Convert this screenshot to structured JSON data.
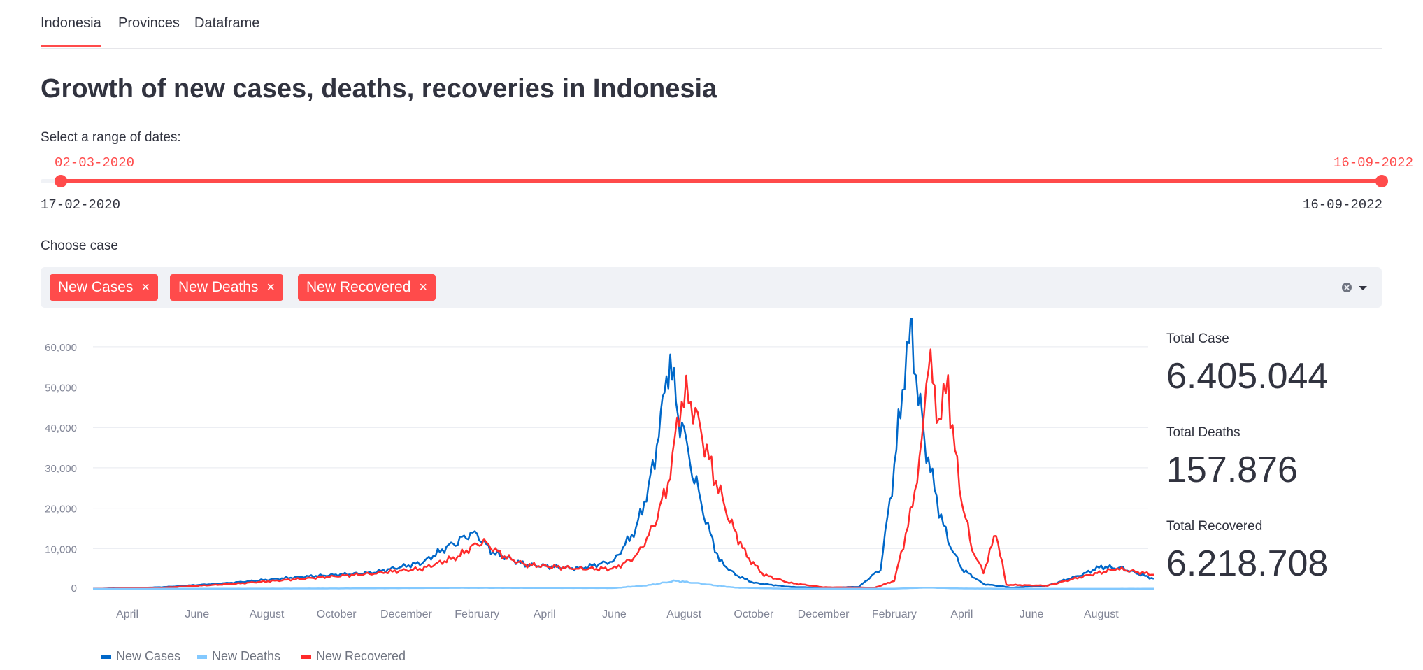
{
  "tabs": [
    {
      "label": "Indonesia",
      "active": true
    },
    {
      "label": "Provinces",
      "active": false
    },
    {
      "label": "Dataframe",
      "active": false
    }
  ],
  "title": "Growth of new cases, deaths, recoveries in Indonesia",
  "date_range": {
    "label": "Select a range of dates:",
    "selected_start": "02-03-2020",
    "selected_end": "16-09-2022",
    "min": "17-02-2020",
    "max": "16-09-2022"
  },
  "case_select": {
    "label": "Choose case",
    "chips": [
      "New Cases",
      "New Deaths",
      "New Recovered"
    ],
    "remove_glyph": "×",
    "clear_icon": "clear-icon",
    "dropdown_icon": "chevron-down-icon"
  },
  "metrics": [
    {
      "label": "Total Case",
      "value": "6.405.044"
    },
    {
      "label": "Total Deaths",
      "value": "157.876"
    },
    {
      "label": "Total Recovered",
      "value": "6.218.708"
    }
  ],
  "colors": {
    "accent": "#ff4b4b",
    "new_cases": "#0068c9",
    "new_deaths": "#83c9ff",
    "new_recovered": "#ff2b2b"
  },
  "chart_data": {
    "type": "line",
    "x_ticks": [
      "April",
      "June",
      "August",
      "October",
      "December",
      "February",
      "April",
      "June",
      "August",
      "October",
      "December",
      "February",
      "April",
      "June",
      "August"
    ],
    "x_tick_dates": [
      "2020-04-01",
      "2020-06-01",
      "2020-08-01",
      "2020-10-01",
      "2020-12-01",
      "2021-02-01",
      "2021-04-01",
      "2021-06-01",
      "2021-08-01",
      "2021-10-01",
      "2021-12-01",
      "2022-02-01",
      "2022-04-01",
      "2022-06-01",
      "2022-08-01"
    ],
    "xlim": [
      "2020-03-02",
      "2022-09-16"
    ],
    "y_ticks": [
      "0",
      "10,000",
      "20,000",
      "30,000",
      "40,000",
      "50,000",
      "60,000"
    ],
    "ylim": [
      0,
      65000
    ],
    "grid": true,
    "legend_position": "bottom-left",
    "series": [
      {
        "name": "New Cases",
        "x": [
          "2020-03-02",
          "2020-05-01",
          "2020-07-01",
          "2020-09-01",
          "2020-11-01",
          "2020-12-15",
          "2021-01-15",
          "2021-01-30",
          "2021-02-15",
          "2021-03-15",
          "2021-05-01",
          "2021-06-01",
          "2021-06-20",
          "2021-07-01",
          "2021-07-10",
          "2021-07-15",
          "2021-07-20",
          "2021-07-25",
          "2021-08-01",
          "2021-08-10",
          "2021-08-20",
          "2021-09-01",
          "2021-09-15",
          "2021-10-01",
          "2021-11-01",
          "2021-12-01",
          "2022-01-01",
          "2022-01-20",
          "2022-02-01",
          "2022-02-10",
          "2022-02-16",
          "2022-02-22",
          "2022-03-01",
          "2022-03-10",
          "2022-03-20",
          "2022-04-01",
          "2022-04-20",
          "2022-05-15",
          "2022-06-15",
          "2022-07-15",
          "2022-08-01",
          "2022-08-20",
          "2022-09-16"
        ],
        "y": [
          0,
          400,
          1500,
          3000,
          4000,
          6500,
          12000,
          14000,
          9000,
          6000,
          5000,
          7000,
          15000,
          25000,
          38000,
          50000,
          57000,
          45000,
          38000,
          28000,
          17000,
          7000,
          3500,
          1500,
          500,
          250,
          500,
          5000,
          30000,
          55000,
          64000,
          48000,
          35000,
          22000,
          12000,
          5000,
          1200,
          300,
          800,
          3500,
          5500,
          5000,
          2500
        ]
      },
      {
        "name": "New Deaths",
        "x": [
          "2020-03-02",
          "2020-10-01",
          "2021-01-15",
          "2021-06-01",
          "2021-07-01",
          "2021-07-25",
          "2021-08-15",
          "2021-09-15",
          "2021-11-01",
          "2022-02-01",
          "2022-03-01",
          "2022-04-01",
          "2022-06-01",
          "2022-09-16"
        ],
        "y": [
          0,
          100,
          250,
          200,
          900,
          2000,
          1300,
          300,
          20,
          50,
          300,
          100,
          10,
          30
        ]
      },
      {
        "name": "New Recovered",
        "x": [
          "2020-03-02",
          "2020-05-01",
          "2020-07-01",
          "2020-09-01",
          "2020-11-01",
          "2020-12-15",
          "2021-01-15",
          "2021-02-05",
          "2021-02-25",
          "2021-03-15",
          "2021-05-01",
          "2021-06-01",
          "2021-06-20",
          "2021-07-05",
          "2021-07-20",
          "2021-07-28",
          "2021-08-05",
          "2021-08-15",
          "2021-08-25",
          "2021-09-10",
          "2021-09-25",
          "2021-10-10",
          "2021-11-01",
          "2021-12-01",
          "2022-01-15",
          "2022-02-01",
          "2022-02-15",
          "2022-02-25",
          "2022-03-03",
          "2022-03-10",
          "2022-03-20",
          "2022-03-30",
          "2022-04-10",
          "2022-04-20",
          "2022-05-01",
          "2022-05-10",
          "2022-06-15",
          "2022-07-15",
          "2022-08-15",
          "2022-09-16"
        ],
        "y": [
          0,
          300,
          1200,
          2500,
          3800,
          5000,
          8000,
          12000,
          8000,
          6000,
          5000,
          5000,
          8000,
          15000,
          28000,
          45000,
          48000,
          40000,
          30000,
          17000,
          8000,
          3500,
          1500,
          400,
          300,
          2000,
          18000,
          35000,
          60000,
          42000,
          50000,
          25000,
          10000,
          4000,
          14000,
          1000,
          800,
          3000,
          5000,
          3500
        ]
      }
    ]
  }
}
